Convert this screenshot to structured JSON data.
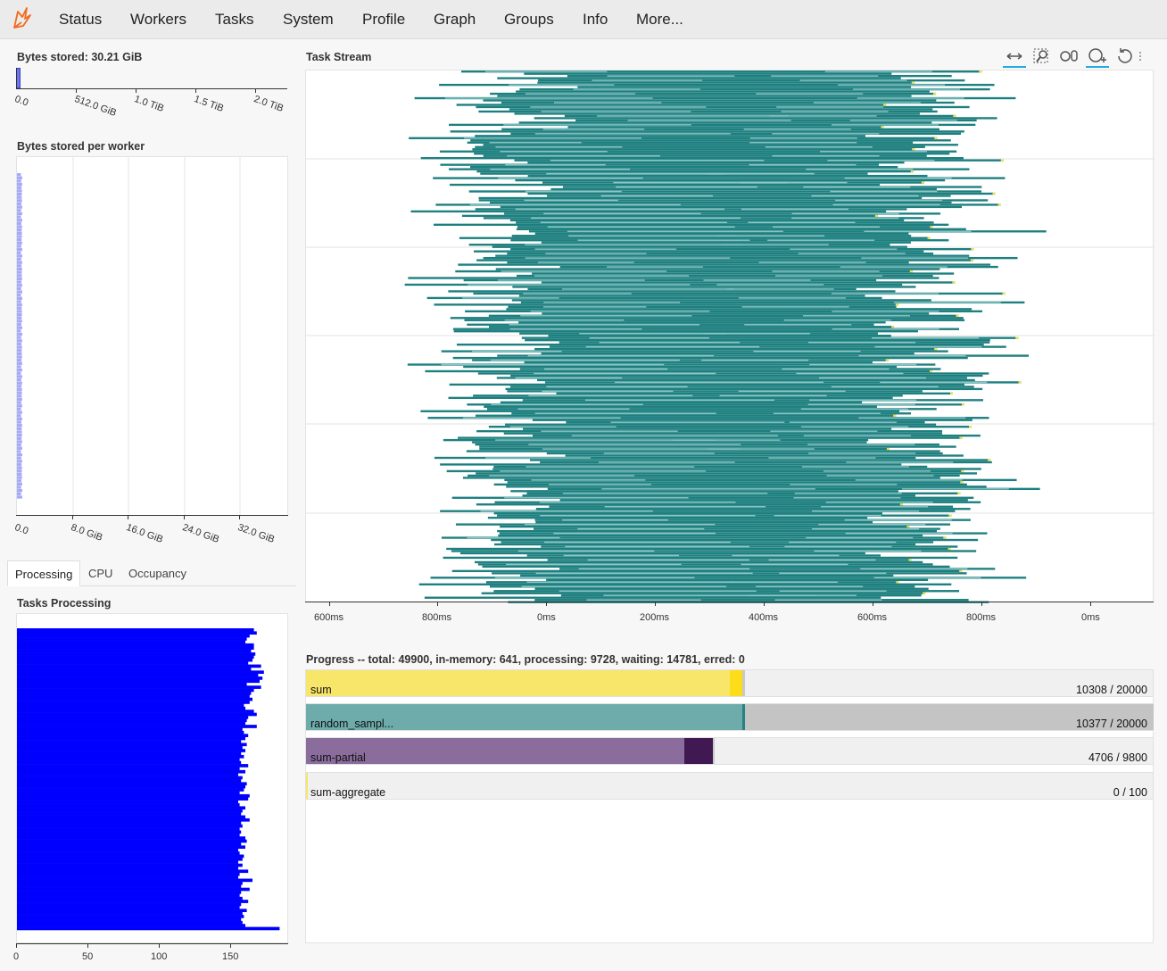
{
  "nav": {
    "items": [
      "Status",
      "Workers",
      "Tasks",
      "System",
      "Profile",
      "Graph",
      "Groups",
      "Info",
      "More..."
    ]
  },
  "bytes_stored": {
    "title": "Bytes stored: 30.21 GiB",
    "ticks": [
      "0.0",
      "512.0 GiB",
      "1.0 TiB",
      "1.5 TiB",
      "2.0 TiB"
    ],
    "fill_fraction": 0.015,
    "color": "#6d74f0"
  },
  "bytes_per_worker": {
    "title": "Bytes stored per worker",
    "ticks": [
      "0.0",
      "8.0 GiB",
      "16.0 GiB",
      "24.0 GiB",
      "32.0 GiB"
    ],
    "bar_color": "#a6a9f5",
    "worker_count": 100,
    "typical_gib": 0.3
  },
  "tabs": [
    "Processing",
    "CPU",
    "Occupancy"
  ],
  "active_tab": "Processing",
  "tasks_processing": {
    "title": "Tasks Processing",
    "ticks": [
      "0",
      "50",
      "100",
      "150"
    ],
    "bar_color": "#0000ff",
    "xlim": [
      0,
      190
    ],
    "values": [
      166,
      168,
      163,
      161,
      160,
      166,
      166,
      164,
      167,
      166,
      165,
      162,
      171,
      164,
      173,
      169,
      172,
      170,
      161,
      171,
      166,
      164,
      163,
      165,
      163,
      159,
      160,
      166,
      168,
      162,
      161,
      160,
      168,
      158,
      159,
      162,
      160,
      157,
      161,
      158,
      160,
      157,
      159,
      156,
      157,
      162,
      156,
      160,
      155,
      158,
      157,
      161,
      160,
      159,
      156,
      163,
      162,
      155,
      156,
      160,
      158,
      157,
      160,
      163,
      157,
      158,
      156,
      157,
      156,
      160,
      161,
      157,
      160,
      155,
      156,
      159,
      158,
      155,
      158,
      155,
      162,
      156,
      155,
      165,
      158,
      157,
      163,
      157,
      156,
      158,
      162,
      157,
      156,
      161,
      158,
      159,
      157,
      158,
      160,
      184
    ]
  },
  "task_stream": {
    "title": "Task Stream",
    "ticks": [
      "600ms",
      "800ms",
      "0ms",
      "200ms",
      "400ms",
      "600ms",
      "800ms",
      "0ms"
    ],
    "color": "#1e7f7f"
  },
  "toolbar": {
    "icons": [
      "pan-icon",
      "box-zoom-icon",
      "wheel-zoom-icon",
      "zoom-in-icon",
      "reset-icon",
      "more-icon"
    ]
  },
  "progress": {
    "title": "Progress -- total: 49900, in-memory: 641, processing: 9728, waiting: 14781, erred: 0",
    "rows": [
      {
        "name": "sum",
        "count": "10308 / 20000",
        "done": 10308,
        "total": 20000,
        "memory_fraction": 0.0145,
        "processing_fraction": 0.003,
        "color": "#f7e66a",
        "mem_color": "#fddc1a",
        "proc_color": "#c8c8c8"
      },
      {
        "name": "random_sampl...",
        "count": "10377 / 20000",
        "done": 10377,
        "total": 20000,
        "memory_fraction": 0.004,
        "processing_fraction": 0.482,
        "color": "#6eabab",
        "mem_color": "#27817f",
        "proc_color": "#c4c4c4"
      },
      {
        "name": "sum-partial",
        "count": "4706 / 9800",
        "done": 4706,
        "total": 9800,
        "memory_fraction": 0.033,
        "processing_fraction": 0.002,
        "color": "#8a6d9d",
        "mem_color": "#401852",
        "proc_color": "#c8c8c8"
      },
      {
        "name": "sum-aggregate",
        "count": "0 / 100",
        "done": 0,
        "total": 100,
        "memory_fraction": 0,
        "processing_fraction": 0.0,
        "color": "#f7e66a",
        "mem_color": "#fddc1a",
        "proc_color": "#c8c8c8"
      }
    ]
  }
}
